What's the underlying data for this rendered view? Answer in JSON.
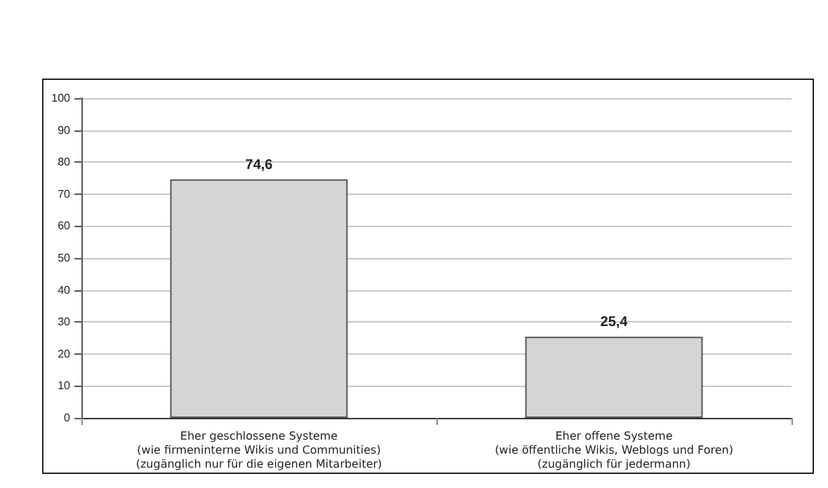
{
  "chart_data": {
    "type": "bar",
    "categories": [
      "Eher geschlossene Systeme\n(wie firmeninterne Wikis und Communities)\n(zugänglich nur für die eigenen Mitarbeiter)",
      "Eher offene Systeme\n(wie öffentliche Wikis, Weblogs und Foren)\n(zugänglich für jedermann)"
    ],
    "values": [
      74.6,
      25.4
    ],
    "value_labels": [
      "74,6",
      "25,4"
    ],
    "color": "#d4d5d7",
    "ylim": [
      0,
      100
    ],
    "yticks": [
      0,
      10,
      20,
      30,
      40,
      50,
      60,
      70,
      80,
      90,
      100
    ],
    "grid": "y"
  }
}
